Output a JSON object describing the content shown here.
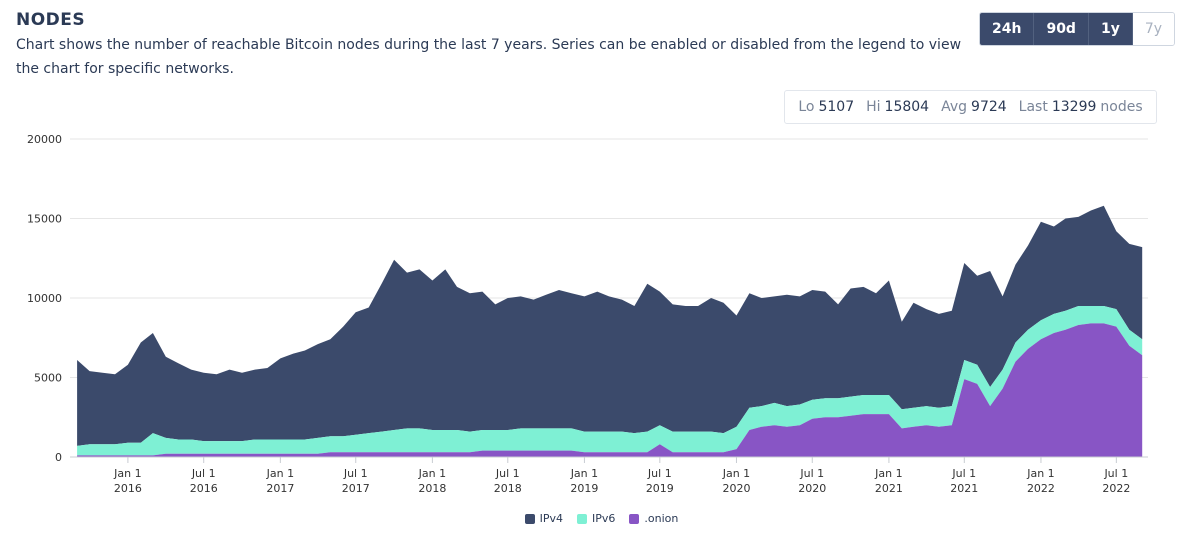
{
  "header": {
    "title": "NODES",
    "description": "Chart shows the number of reachable Bitcoin nodes during the last 7 years. Series can be enabled or disabled from the legend to view the chart for specific networks."
  },
  "range_buttons": [
    {
      "label": "24h",
      "active": true
    },
    {
      "label": "90d",
      "active": true
    },
    {
      "label": "1y",
      "active": true
    },
    {
      "label": "7y",
      "active": false
    }
  ],
  "stats": {
    "lo_label": "Lo",
    "lo_value": "5107",
    "hi_label": "Hi",
    "hi_value": "15804",
    "avg_label": "Avg",
    "avg_value": "9724",
    "last_label": "Last",
    "last_value": "13299",
    "unit": "nodes"
  },
  "colors": {
    "ipv4": "#3b4a6b",
    "ipv6": "#7ef0d4",
    "onion": "#8855c5",
    "grid": "#e6e6e6",
    "axis_text": "#333333"
  },
  "chart_data": {
    "type": "area",
    "stacked": true,
    "title": "",
    "xlabel": "",
    "ylabel": "",
    "ylim": [
      0,
      20000
    ],
    "yticks": [
      0,
      5000,
      10000,
      15000,
      20000
    ],
    "xlim": [
      "2015-08-15",
      "2022-09-15"
    ],
    "xticks": [
      {
        "date": "2016-01-01",
        "line1": "Jan 1",
        "line2": "2016"
      },
      {
        "date": "2016-07-01",
        "line1": "Jul 1",
        "line2": "2016"
      },
      {
        "date": "2017-01-01",
        "line1": "Jan 1",
        "line2": "2017"
      },
      {
        "date": "2017-07-01",
        "line1": "Jul 1",
        "line2": "2017"
      },
      {
        "date": "2018-01-01",
        "line1": "Jan 1",
        "line2": "2018"
      },
      {
        "date": "2018-07-01",
        "line1": "Jul 1",
        "line2": "2018"
      },
      {
        "date": "2019-01-01",
        "line1": "Jan 1",
        "line2": "2019"
      },
      {
        "date": "2019-07-01",
        "line1": "Jul 1",
        "line2": "2019"
      },
      {
        "date": "2020-01-01",
        "line1": "Jan 1",
        "line2": "2020"
      },
      {
        "date": "2020-07-01",
        "line1": "Jul 1",
        "line2": "2020"
      },
      {
        "date": "2021-01-01",
        "line1": "Jan 1",
        "line2": "2021"
      },
      {
        "date": "2021-07-01",
        "line1": "Jul 1",
        "line2": "2021"
      },
      {
        "date": "2022-01-01",
        "line1": "Jan 1",
        "line2": "2022"
      },
      {
        "date": "2022-07-01",
        "line1": "Jul 1",
        "line2": "2022"
      }
    ],
    "x": [
      "2015-09-01",
      "2015-10-01",
      "2015-11-01",
      "2015-12-01",
      "2016-01-01",
      "2016-02-01",
      "2016-03-01",
      "2016-04-01",
      "2016-05-01",
      "2016-06-01",
      "2016-07-01",
      "2016-08-01",
      "2016-09-01",
      "2016-10-01",
      "2016-11-01",
      "2016-12-01",
      "2017-01-01",
      "2017-02-01",
      "2017-03-01",
      "2017-04-01",
      "2017-05-01",
      "2017-06-01",
      "2017-07-01",
      "2017-08-01",
      "2017-09-01",
      "2017-10-01",
      "2017-11-01",
      "2017-12-01",
      "2018-01-01",
      "2018-02-01",
      "2018-03-01",
      "2018-04-01",
      "2018-05-01",
      "2018-06-01",
      "2018-07-01",
      "2018-08-01",
      "2018-09-01",
      "2018-10-01",
      "2018-11-01",
      "2018-12-01",
      "2019-01-01",
      "2019-02-01",
      "2019-03-01",
      "2019-04-01",
      "2019-05-01",
      "2019-06-01",
      "2019-07-01",
      "2019-08-01",
      "2019-09-01",
      "2019-10-01",
      "2019-11-01",
      "2019-12-01",
      "2020-01-01",
      "2020-02-01",
      "2020-03-01",
      "2020-04-01",
      "2020-05-01",
      "2020-06-01",
      "2020-07-01",
      "2020-08-01",
      "2020-09-01",
      "2020-10-01",
      "2020-11-01",
      "2020-12-01",
      "2021-01-01",
      "2021-02-01",
      "2021-03-01",
      "2021-04-01",
      "2021-05-01",
      "2021-06-01",
      "2021-07-01",
      "2021-08-01",
      "2021-09-01",
      "2021-10-01",
      "2021-11-01",
      "2021-12-01",
      "2022-01-01",
      "2022-02-01",
      "2022-03-01",
      "2022-04-01",
      "2022-05-01",
      "2022-06-01",
      "2022-07-01",
      "2022-08-01",
      "2022-09-01"
    ],
    "series": [
      {
        "name": "IPv4",
        "color": "#3b4a6b",
        "values": [
          5400,
          4600,
          4500,
          4400,
          4900,
          6300,
          6300,
          5100,
          4800,
          4400,
          4300,
          4200,
          4500,
          4300,
          4400,
          4500,
          5100,
          5400,
          5600,
          5900,
          6100,
          6900,
          7700,
          7900,
          9300,
          10700,
          9800,
          10000,
          9400,
          10100,
          9000,
          8700,
          8700,
          7900,
          8300,
          8300,
          8100,
          8400,
          8700,
          8500,
          8500,
          8800,
          8500,
          8300,
          8000,
          9300,
          8400,
          8000,
          7900,
          7900,
          8400,
          8200,
          7000,
          7200,
          6800,
          6700,
          7000,
          6800,
          6900,
          6700,
          5900,
          6800,
          6800,
          6400,
          7200,
          5500,
          6600,
          6100,
          5900,
          6000,
          6100,
          5600,
          7300,
          4600,
          4900,
          5300,
          6200,
          5500,
          5800,
          5600,
          6000,
          6300,
          4900,
          5400,
          5800
        ]
      },
      {
        "name": "IPv6",
        "color": "#7ef0d4",
        "values": [
          600,
          700,
          700,
          700,
          800,
          800,
          1400,
          1000,
          900,
          900,
          800,
          800,
          800,
          800,
          900,
          900,
          900,
          900,
          900,
          1000,
          1000,
          1000,
          1100,
          1200,
          1300,
          1400,
          1500,
          1500,
          1400,
          1400,
          1400,
          1300,
          1300,
          1300,
          1300,
          1400,
          1400,
          1400,
          1400,
          1400,
          1300,
          1300,
          1300,
          1300,
          1200,
          1300,
          1200,
          1300,
          1300,
          1300,
          1300,
          1200,
          1400,
          1400,
          1300,
          1400,
          1300,
          1300,
          1200,
          1200,
          1200,
          1200,
          1200,
          1200,
          1200,
          1200,
          1200,
          1200,
          1200,
          1200,
          1200,
          1200,
          1200,
          1200,
          1200,
          1200,
          1200,
          1200,
          1200,
          1200,
          1100,
          1100,
          1100,
          1000,
          1000
        ]
      },
      {
        "name": ".onion",
        "color": "#8855c5",
        "values": [
          100,
          100,
          100,
          100,
          100,
          100,
          100,
          200,
          200,
          200,
          200,
          200,
          200,
          200,
          200,
          200,
          200,
          200,
          200,
          200,
          300,
          300,
          300,
          300,
          300,
          300,
          300,
          300,
          300,
          300,
          300,
          300,
          400,
          400,
          400,
          400,
          400,
          400,
          400,
          400,
          300,
          300,
          300,
          300,
          300,
          300,
          800,
          300,
          300,
          300,
          300,
          300,
          500,
          1700,
          1900,
          2000,
          1900,
          2000,
          2400,
          2500,
          2500,
          2600,
          2700,
          2700,
          2700,
          1800,
          1900,
          2000,
          1900,
          2000,
          4900,
          4600,
          3200,
          4300,
          6000,
          6800,
          7400,
          7800,
          8000,
          8300,
          8400,
          8400,
          8200,
          7000,
          6400
        ]
      }
    ],
    "legend": {
      "position": "bottom-center",
      "entries": [
        "IPv4",
        "IPv6",
        ".onion"
      ]
    },
    "grid": true
  }
}
